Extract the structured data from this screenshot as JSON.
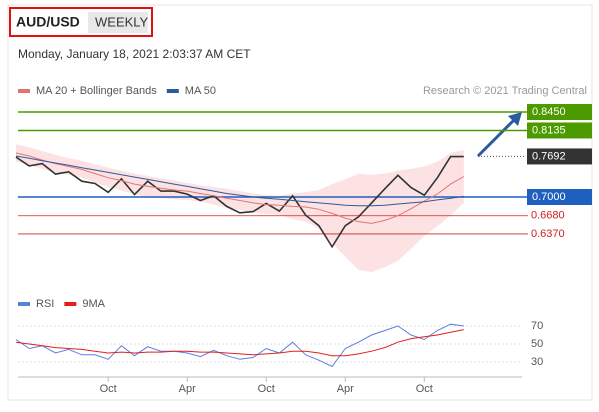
{
  "header": {
    "symbol": "AUD/USD",
    "timeframe": "WEEKLY",
    "timestamp": "Monday, January 18, 2021 2:03:37 AM CET",
    "credit": "Research © 2021 Trading Central"
  },
  "chart_data": [
    {
      "type": "line",
      "categories": [
        null,
        null,
        null,
        null,
        null,
        null,
        null,
        "Oct",
        null,
        null,
        null,
        null,
        null,
        "Apr",
        null,
        null,
        null,
        null,
        null,
        "Oct",
        null,
        null,
        null,
        null,
        null,
        "Apr",
        null,
        null,
        null,
        null,
        null,
        "Oct",
        null,
        null,
        null
      ],
      "ylim": [
        0.5413,
        0.8655
      ],
      "series": [
        {
          "color": "#333333",
          "values": [
            0.768,
            0.753,
            0.757,
            0.739,
            0.743,
            0.727,
            0.723,
            0.708,
            0.731,
            0.704,
            0.727,
            0.71,
            0.71,
            0.705,
            0.694,
            0.702,
            0.684,
            0.673,
            0.675,
            0.689,
            0.676,
            0.702,
            0.669,
            0.651,
            0.615,
            0.651,
            0.666,
            0.69,
            0.714,
            0.737,
            0.716,
            0.703,
            0.733,
            0.769,
            0.769
          ]
        },
        {
          "name": "MA 20 + Bollinger Bands",
          "color": "#e57373",
          "values": [
            0.775,
            0.77,
            0.763,
            0.757,
            0.752,
            0.747,
            0.74,
            0.733,
            0.728,
            0.722,
            0.718,
            0.715,
            0.712,
            0.71,
            0.706,
            0.702,
            0.698,
            0.694,
            0.69,
            0.687,
            0.686,
            0.684,
            0.683,
            0.679,
            0.672,
            0.664,
            0.658,
            0.655,
            0.66,
            0.668,
            0.68,
            0.693,
            0.705,
            0.722,
            0.735
          ]
        },
        {
          "name": "MA 50",
          "color": "#2c5aa0",
          "values": [
            0.77,
            0.766,
            0.762,
            0.758,
            0.754,
            0.75,
            0.746,
            0.742,
            0.738,
            0.734,
            0.73,
            0.726,
            0.722,
            0.718,
            0.714,
            0.71,
            0.706,
            0.703,
            0.7,
            0.698,
            0.696,
            0.694,
            0.692,
            0.69,
            0.688,
            0.686,
            0.685,
            0.685,
            0.686,
            0.688,
            0.69,
            0.692,
            0.695,
            0.698,
            0.701
          ]
        }
      ],
      "bands": {
        "color": "#fbd5d5",
        "upper": [
          0.79,
          0.785,
          0.778,
          0.772,
          0.766,
          0.762,
          0.756,
          0.75,
          0.745,
          0.74,
          0.736,
          0.732,
          0.728,
          0.724,
          0.72,
          0.717,
          0.714,
          0.71,
          0.706,
          0.703,
          0.702,
          0.706,
          0.708,
          0.712,
          0.722,
          0.73,
          0.74,
          0.738,
          0.74,
          0.745,
          0.748,
          0.752,
          0.76,
          0.775,
          0.78
        ],
        "lower": [
          0.76,
          0.755,
          0.748,
          0.742,
          0.738,
          0.733,
          0.725,
          0.717,
          0.711,
          0.705,
          0.7,
          0.698,
          0.696,
          0.695,
          0.692,
          0.687,
          0.682,
          0.678,
          0.674,
          0.671,
          0.67,
          0.662,
          0.658,
          0.646,
          0.622,
          0.598,
          0.576,
          0.572,
          0.58,
          0.591,
          0.612,
          0.634,
          0.65,
          0.669,
          0.69
        ]
      },
      "levels": [
        {
          "value": 0.845,
          "label": "0.8450",
          "color": "#4c9a00",
          "style": "box"
        },
        {
          "value": 0.8135,
          "label": "0.8135",
          "color": "#4c9a00",
          "style": "box"
        },
        {
          "value": 0.7692,
          "label": "0.7692",
          "color": "#333333",
          "style": "current"
        },
        {
          "value": 0.7,
          "label": "0.7000",
          "color": "#1f5fbf",
          "style": "box"
        },
        {
          "value": 0.668,
          "label": "0.6680",
          "color": "#d42020",
          "style": "text"
        },
        {
          "value": 0.637,
          "label": "0.6370",
          "color": "#d42020",
          "style": "text"
        }
      ]
    },
    {
      "type": "line",
      "ylim": [
        18.9,
        82.2
      ],
      "yticks": [
        30,
        50,
        70
      ],
      "series": [
        {
          "name": "RSI",
          "color": "#5b7fe0",
          "values": [
            55,
            45,
            48,
            40,
            44,
            38,
            38,
            33,
            48,
            37,
            47,
            42,
            42,
            40,
            36,
            43,
            37,
            33,
            35,
            45,
            40,
            52,
            38,
            32,
            25,
            45,
            52,
            60,
            65,
            70,
            60,
            55,
            65,
            72,
            70
          ]
        },
        {
          "name": "9MA",
          "color": "#e02020",
          "values": [
            52,
            50,
            48,
            46,
            45,
            44,
            42,
            40,
            41,
            40,
            41,
            41,
            42,
            42,
            41,
            41,
            40,
            39,
            38,
            39,
            40,
            42,
            42,
            40,
            37,
            37,
            39,
            42,
            46,
            52,
            56,
            58,
            60,
            63,
            66
          ]
        }
      ]
    }
  ]
}
